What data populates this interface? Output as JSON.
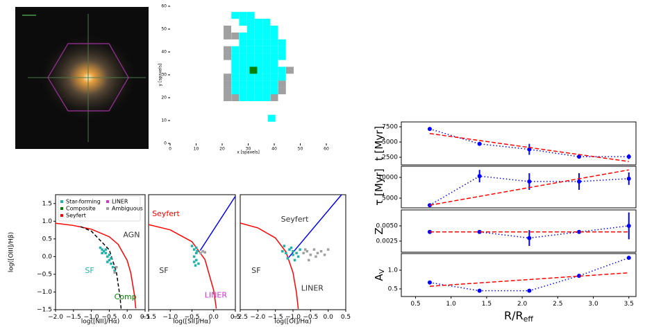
{
  "chart_data": [
    {
      "type": "scatter",
      "frame": false,
      "xlabel": "x [spaxels]",
      "ylabel": "y [spaxels]",
      "xlim": [
        0,
        60
      ],
      "ylim": [
        0,
        60
      ],
      "xticks": [
        0,
        10,
        20,
        30,
        40,
        50,
        60
      ],
      "yticks": [
        0,
        10,
        20,
        30,
        40,
        50,
        60
      ],
      "series": [
        {
          "color": "#a0a0a0",
          "x": [
            22,
            22,
            22,
            22,
            22,
            22,
            22,
            22,
            25,
            25,
            46,
            43,
            43,
            40
          ],
          "y": [
            50,
            47,
            41,
            38,
            29,
            26,
            23,
            20,
            47,
            20,
            32,
            26,
            23,
            20
          ]
        },
        {
          "color": "#00ffff",
          "x": [
            25,
            28,
            31,
            28,
            31,
            34,
            37,
            31,
            34,
            37,
            40,
            28,
            31,
            34,
            37,
            40,
            28,
            31,
            34,
            37,
            40,
            43,
            25,
            28,
            31,
            34,
            37,
            40,
            43,
            25,
            28,
            31,
            34,
            37,
            40,
            43,
            25,
            28,
            31,
            34,
            37,
            40,
            25,
            28,
            31,
            34,
            37,
            40,
            43,
            25,
            28,
            31,
            34,
            37,
            40,
            43,
            25,
            28,
            31,
            34,
            37,
            40,
            25,
            28,
            31,
            34,
            37,
            40,
            28,
            31,
            34,
            37,
            39
          ],
          "y": [
            56,
            56,
            56,
            53,
            53,
            53,
            53,
            50,
            50,
            50,
            50,
            47,
            47,
            47,
            47,
            47,
            44,
            44,
            44,
            44,
            44,
            44,
            41,
            41,
            41,
            41,
            41,
            41,
            41,
            38,
            38,
            38,
            38,
            38,
            38,
            38,
            35,
            35,
            35,
            35,
            35,
            35,
            32,
            32,
            32,
            32,
            32,
            32,
            32,
            29,
            29,
            29,
            29,
            29,
            29,
            29,
            26,
            26,
            26,
            26,
            26,
            26,
            23,
            23,
            23,
            23,
            23,
            23,
            20,
            20,
            20,
            20,
            11
          ]
        },
        {
          "color": "#008000",
          "x": [
            32
          ],
          "y": [
            32
          ]
        }
      ]
    },
    {
      "type": "scatter",
      "frame": true,
      "xlabel": "log([NII]/Hα)",
      "ylabel": "log([OIII]/Hβ)",
      "legend": "upper left",
      "xlim": [
        -2,
        0.5
      ],
      "ylim": [
        -1.5,
        1.75
      ],
      "xticks": [
        {
          "value": -2,
          "label": "−2.0"
        },
        {
          "value": -1.5,
          "label": "−1.5"
        },
        {
          "value": -1,
          "label": "−1.0"
        },
        {
          "value": -0.5,
          "label": "−0.5"
        },
        {
          "value": 0,
          "label": "0.0"
        },
        0.5
      ],
      "yticks": [
        {
          "value": -1.5,
          "label": "−1.5"
        },
        {
          "value": -1,
          "label": "−1.0"
        },
        {
          "value": -0.5,
          "label": "−0.5"
        },
        {
          "value": 0,
          "label": "0.0"
        },
        0.5,
        {
          "value": 1,
          "label": "1.0"
        },
        1.5
      ],
      "series": [
        {
          "name": "Star-forming",
          "color": "#20b2aa",
          "x": [
            -0.75,
            -0.7,
            -0.65,
            -0.6,
            -0.55,
            -0.5,
            -0.45,
            -0.4,
            -0.35,
            -0.6,
            -0.5,
            -0.45,
            -0.7,
            -0.55
          ],
          "y": [
            0.25,
            0.2,
            0.15,
            0.1,
            0.0,
            -0.1,
            -0.2,
            -0.3,
            -0.4,
            0.2,
            0.05,
            -0.05,
            0.1,
            -0.15
          ]
        },
        {
          "name": "Composite",
          "color": "#008000",
          "x": [],
          "y": []
        },
        {
          "name": "Seyfert",
          "color": "#ff0000",
          "x": [],
          "y": []
        },
        {
          "name": "LINER",
          "color": "#cc33cc",
          "x": [],
          "y": []
        },
        {
          "name": "Ambiguous",
          "color": "#a0a0a0",
          "x": [
            -0.3,
            -0.35
          ],
          "y": [
            -0.3,
            -0.45
          ]
        }
      ],
      "lines": [
        {
          "color": "#ff0000",
          "style": "solid",
          "x": [
            -2,
            -1.5,
            -1,
            -0.5,
            -0.25,
            0,
            0.1,
            0.2,
            0.24
          ],
          "y": [
            0.943,
            0.88,
            0.775,
            0.561,
            0.343,
            -0.108,
            -0.459,
            -1.069,
            -1.462
          ]
        },
        {
          "color": "#000000",
          "style": "dashed",
          "x": [
            -1.3,
            -1,
            -0.5,
            -0.3,
            -0.2,
            -0.17
          ],
          "y": [
            0.848,
            0.719,
            0.191,
            -0.443,
            -1.14,
            -1.473
          ]
        }
      ],
      "annotations": [
        {
          "text": "AGN",
          "x": 0.12,
          "y": 0.6,
          "color": "#333333"
        },
        {
          "text": "SF",
          "x": -1.05,
          "y": -0.4,
          "color": "#20b2aa"
        },
        {
          "text": "Comp",
          "x": -0.05,
          "y": -1.15,
          "color": "#008000"
        }
      ]
    },
    {
      "type": "scatter",
      "frame": true,
      "xlabel": "log([SII]/Hα)",
      "xlim": [
        -1.5,
        0.5
      ],
      "ylim": [
        -1.5,
        1.75
      ],
      "xticks": [
        {
          "value": -1.5,
          "label": "−1.5"
        },
        {
          "value": -1,
          "label": "−1.0"
        },
        {
          "value": -0.5,
          "label": "−0.5"
        },
        {
          "value": 0,
          "label": "0.0"
        },
        0.5
      ],
      "series": [
        {
          "color": "#20b2aa",
          "x": [
            -0.5,
            -0.45,
            -0.4,
            -0.45,
            -0.4,
            -0.35,
            -0.42,
            -0.38,
            -0.45,
            -0.4
          ],
          "y": [
            0.3,
            0.2,
            0.1,
            0.0,
            -0.1,
            -0.2,
            -0.25,
            0.15,
            -0.15,
            0.25
          ]
        },
        {
          "color": "#a0a0a0",
          "x": [
            -0.3,
            -0.25,
            -0.2
          ],
          "y": [
            0.1,
            0.15,
            0.12
          ]
        }
      ],
      "lines": [
        {
          "color": "#ff0000",
          "style": "solid",
          "x": [
            -1.5,
            -1,
            -0.5,
            -0.2,
            0,
            0.05,
            0.06
          ],
          "y": [
            0.904,
            0.755,
            0.422,
            -0.085,
            -0.95,
            -1.367,
            -1.469
          ]
        },
        {
          "color": "#0000ff",
          "style": "solid",
          "x": [
            -0.31,
            0.5
          ],
          "y": [
            0.174,
            1.705
          ]
        }
      ],
      "annotations": [
        {
          "text": "Seyfert",
          "x": -1.1,
          "y": 1.2,
          "color": "#ff0000"
        },
        {
          "text": "SF",
          "x": -1.15,
          "y": -0.4,
          "color": "#333333"
        },
        {
          "text": "LINER",
          "x": 0.05,
          "y": -1.1,
          "color": "#cc33cc"
        }
      ]
    },
    {
      "type": "scatter",
      "frame": true,
      "xlabel": "log([OI]/Hα)",
      "xlim": [
        -2.5,
        0.5
      ],
      "ylim": [
        -1.5,
        1.75
      ],
      "xticks": [
        {
          "value": -2.5,
          "label": "−2.5"
        },
        {
          "value": -2,
          "label": "−2.0"
        },
        {
          "value": -1.5,
          "label": "−1.5"
        },
        {
          "value": -1,
          "label": "−1.0"
        },
        {
          "value": -0.5,
          "label": "−0.5"
        },
        {
          "value": 0,
          "label": "0.0"
        },
        0.5
      ],
      "series": [
        {
          "color": "#20b2aa",
          "x": [
            -1.3,
            -1.2,
            -1.1,
            -1.0,
            -0.9,
            -0.8,
            -1.15,
            -1.05,
            -0.95,
            -1.25,
            -0.85,
            -1.0
          ],
          "y": [
            0.15,
            0.1,
            0.2,
            0.05,
            0.1,
            0.2,
            -0.05,
            0.25,
            -0.1,
            0.3,
            0.0,
            0.15
          ]
        },
        {
          "color": "#a0a0a0",
          "x": [
            -0.7,
            -0.6,
            -0.5,
            -0.4,
            -0.3,
            -0.2,
            -0.1,
            0.0,
            -0.55,
            -0.35,
            -0.65
          ],
          "y": [
            0.1,
            0.15,
            0.05,
            0.2,
            0.1,
            0.15,
            0.05,
            0.2,
            -0.1,
            0.0,
            0.2
          ]
        }
      ],
      "lines": [
        {
          "color": "#ff0000",
          "style": "solid",
          "x": [
            -2.5,
            -2,
            -1.5,
            -1.2,
            -1,
            -0.9,
            -0.85
          ],
          "y": [
            0.948,
            0.812,
            0.528,
            0.133,
            -0.45,
            -1.025,
            -1.478
          ]
        },
        {
          "color": "#0000ff",
          "style": "solid",
          "x": [
            -1.125,
            0.381
          ],
          "y": [
            -0.028,
            1.75
          ]
        }
      ],
      "annotations": [
        {
          "text": "Seyfert",
          "x": -0.95,
          "y": 1.05,
          "color": "#333333"
        },
        {
          "text": "SF",
          "x": -2.05,
          "y": -0.4,
          "color": "#333333"
        },
        {
          "text": "LINER",
          "x": -0.45,
          "y": -0.9,
          "color": "#333333"
        }
      ]
    },
    {
      "type": "line",
      "frame": true,
      "ylabel": "t [Myr]",
      "xlim": [
        0.3,
        3.6
      ],
      "ylim": [
        1250,
        8300
      ],
      "yticks": [
        2500,
        5000,
        7500
      ],
      "x": [
        0.7,
        1.4,
        2.1,
        2.8,
        3.5
      ],
      "series": [
        {
          "color": "#0000ff",
          "style": "dotted",
          "values": [
            7150,
            4700,
            3800,
            2600,
            2600
          ],
          "errors": [
            0,
            200,
            900,
            300,
            400
          ]
        },
        {
          "color": "#ff0000",
          "style": "dashed",
          "x": [
            0.7,
            3.5
          ],
          "values": [
            6400,
            1800
          ]
        }
      ]
    },
    {
      "type": "line",
      "frame": true,
      "ylabel": "τ [Myr]",
      "xlim": [
        0.3,
        3.6
      ],
      "ylim": [
        2670,
        12670
      ],
      "yticks": [
        5000,
        10000
      ],
      "x": [
        0.7,
        1.4,
        2.1,
        2.8,
        3.5
      ],
      "series": [
        {
          "color": "#0000ff",
          "style": "dotted",
          "values": [
            3300,
            10300,
            9000,
            9000,
            9700
          ],
          "errors": [
            0,
            1500,
            2000,
            2000,
            1500
          ]
        },
        {
          "color": "#ff0000",
          "style": "dashed",
          "x": [
            0.7,
            3.5
          ],
          "values": [
            3300,
            11800
          ]
        }
      ]
    },
    {
      "type": "line",
      "frame": true,
      "ylabel": "Z",
      "xlim": [
        0.3,
        3.6
      ],
      "ylim": [
        0.00068,
        0.00761
      ],
      "yticks": [
        0.0025,
        {
          "value": 0.005,
          "label": "0.0050"
        }
      ],
      "x": [
        0.7,
        1.4,
        2.1,
        2.8,
        3.5
      ],
      "series": [
        {
          "color": "#0000ff",
          "style": "dotted",
          "values": [
            0.004,
            0.004,
            0.003,
            0.004,
            0.005
          ],
          "errors": [
            0,
            0,
            0.0013,
            0,
            0.0022
          ]
        },
        {
          "color": "#ff0000",
          "style": "dashed",
          "x": [
            0.7,
            3.5
          ],
          "values": [
            0.004,
            0.004
          ]
        }
      ]
    },
    {
      "type": "line",
      "frame": true,
      "ylabel": "A",
      "ylabel_sub": "V",
      "xlabel": "R/R",
      "xlabel_sub": "eff",
      "xlim": [
        0.3,
        3.6
      ],
      "ylim": [
        0.296,
        1.444
      ],
      "xticks": [
        0.5,
        {
          "value": 1,
          "label": "1.0"
        },
        1.5,
        {
          "value": 2,
          "label": "2.0"
        },
        2.5,
        {
          "value": 3,
          "label": "3.0"
        },
        3.5
      ],
      "yticks": [
        0.5,
        {
          "value": 1,
          "label": "1.0"
        }
      ],
      "x": [
        0.7,
        1.4,
        2.1,
        2.8,
        3.5
      ],
      "series": [
        {
          "color": "#0000ff",
          "style": "dotted",
          "values": [
            0.67,
            0.45,
            0.45,
            0.85,
            1.33
          ],
          "errors": [
            0,
            0.03,
            0.05,
            0.03,
            0.05
          ]
        },
        {
          "color": "#ff0000",
          "style": "dashed",
          "x": [
            0.7,
            3.5
          ],
          "values": [
            0.57,
            0.93
          ]
        }
      ]
    }
  ]
}
